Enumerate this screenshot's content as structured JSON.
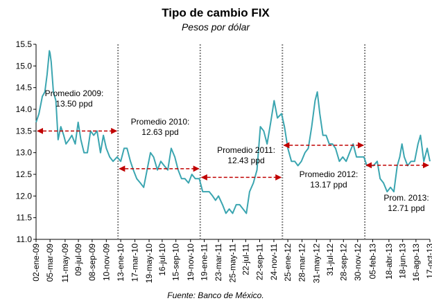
{
  "chart_data": {
    "type": "line",
    "title": "Tipo de cambio FIX",
    "subtitle": "Pesos por dólar",
    "source": "Fuente: Banco de México.",
    "ylim": [
      11.0,
      15.5
    ],
    "yticks": [
      {
        "value": 11.0,
        "label": "11.0"
      },
      11.5,
      {
        "value": 12.0,
        "label": "12.0"
      },
      12.5,
      {
        "value": 13.0,
        "label": "13.0"
      },
      13.5,
      {
        "value": 14.0,
        "label": "14.0"
      },
      14.5,
      {
        "value": 15.0,
        "label": "15.0"
      },
      15.5
    ],
    "xlim": [
      "2009-01-02",
      "2013-10-17"
    ],
    "xticks": [
      {
        "value": "2009-01-02",
        "label": "02-ene-09"
      },
      {
        "value": "2009-03-05",
        "label": "05-mar-09"
      },
      {
        "value": "2009-05-11",
        "label": "11-may-09"
      },
      {
        "value": "2009-07-09",
        "label": "09-jul-09"
      },
      {
        "value": "2009-09-08",
        "label": "08-sep-09"
      },
      {
        "value": "2009-11-10",
        "label": "10-nov-09"
      },
      {
        "value": "2010-01-13",
        "label": "13-ene-10"
      },
      {
        "value": "2010-03-17",
        "label": "17-mar-10"
      },
      {
        "value": "2010-05-19",
        "label": "19-may-10"
      },
      {
        "value": "2010-07-16",
        "label": "16-jul-10"
      },
      {
        "value": "2010-09-15",
        "label": "15-sep-10"
      },
      {
        "value": "2010-11-19",
        "label": "19-nov-10"
      },
      {
        "value": "2011-01-19",
        "label": "19-ene-11"
      },
      {
        "value": "2011-03-23",
        "label": "23-mar-11"
      },
      {
        "value": "2011-05-25",
        "label": "25-may-11"
      },
      {
        "value": "2011-07-22",
        "label": "22-jul-11"
      },
      {
        "value": "2011-09-22",
        "label": "22-sep-11"
      },
      {
        "value": "2011-11-24",
        "label": "24-nov-11"
      },
      {
        "value": "2012-01-25",
        "label": "25-ene-12"
      },
      {
        "value": "2012-03-28",
        "label": "28-mar-12"
      },
      {
        "value": "2012-05-31",
        "label": "31-may-12"
      },
      {
        "value": "2012-07-31",
        "label": "31-jul-12"
      },
      {
        "value": "2012-09-28",
        "label": "28-sep-12"
      },
      {
        "value": "2012-11-30",
        "label": "30-nov-12"
      },
      {
        "value": "2013-02-05",
        "label": "05-feb-13"
      },
      {
        "value": "2013-04-18",
        "label": "18-abr-13"
      },
      {
        "value": "2013-06-18",
        "label": "18-jun-13"
      },
      {
        "value": "2013-08-16",
        "label": "16-ago-13"
      },
      {
        "value": "2013-10-17",
        "label": "17-oct-13"
      }
    ],
    "dividers": [
      "2010-01-01",
      "2011-01-01",
      "2012-01-01",
      "2013-01-01"
    ],
    "x": [
      "2009-01-02",
      "2009-01-15",
      "2009-01-30",
      "2009-02-10",
      "2009-02-20",
      "2009-03-02",
      "2009-03-05",
      "2009-03-10",
      "2009-03-20",
      "2009-03-31",
      "2009-04-10",
      "2009-04-22",
      "2009-05-05",
      "2009-05-15",
      "2009-05-29",
      "2009-06-10",
      "2009-06-25",
      "2009-07-08",
      "2009-07-20",
      "2009-08-03",
      "2009-08-18",
      "2009-09-01",
      "2009-09-15",
      "2009-09-30",
      "2009-10-15",
      "2009-10-28",
      "2009-11-10",
      "2009-11-25",
      "2009-12-10",
      "2009-12-28",
      "2010-01-13",
      "2010-01-28",
      "2010-02-10",
      "2010-02-25",
      "2010-03-10",
      "2010-03-25",
      "2010-04-10",
      "2010-04-25",
      "2010-05-10",
      "2010-05-25",
      "2010-06-08",
      "2010-06-25",
      "2010-07-10",
      "2010-07-25",
      "2010-08-10",
      "2010-08-25",
      "2010-09-10",
      "2010-09-25",
      "2010-10-10",
      "2010-10-25",
      "2010-11-10",
      "2010-11-25",
      "2010-12-10",
      "2010-12-28",
      "2011-01-12",
      "2011-01-28",
      "2011-02-10",
      "2011-02-25",
      "2011-03-10",
      "2011-03-23",
      "2011-04-10",
      "2011-04-25",
      "2011-05-10",
      "2011-05-25",
      "2011-06-10",
      "2011-06-25",
      "2011-07-10",
      "2011-07-25",
      "2011-08-08",
      "2011-08-25",
      "2011-09-10",
      "2011-09-25",
      "2011-10-10",
      "2011-10-25",
      "2011-11-10",
      "2011-11-25",
      "2011-12-10",
      "2011-12-28",
      "2012-01-10",
      "2012-01-25",
      "2012-02-10",
      "2012-02-25",
      "2012-03-10",
      "2012-03-25",
      "2012-04-10",
      "2012-04-25",
      "2012-05-10",
      "2012-05-25",
      "2012-06-04",
      "2012-06-15",
      "2012-06-29",
      "2012-07-13",
      "2012-07-27",
      "2012-08-10",
      "2012-08-24",
      "2012-09-10",
      "2012-09-25",
      "2012-10-10",
      "2012-10-25",
      "2012-11-10",
      "2012-11-25",
      "2012-12-10",
      "2012-12-28",
      "2013-01-10",
      "2013-01-25",
      "2013-02-08",
      "2013-02-25",
      "2013-03-10",
      "2013-03-25",
      "2013-04-10",
      "2013-04-25",
      "2013-05-10",
      "2013-05-25",
      "2013-06-05",
      "2013-06-15",
      "2013-06-25",
      "2013-07-10",
      "2013-07-25",
      "2013-08-10",
      "2013-08-25",
      "2013-09-05",
      "2013-09-20",
      "2013-10-05",
      "2013-10-17"
    ],
    "series": [
      {
        "name": "FIX",
        "color": "#3aa5b0",
        "values": [
          13.7,
          13.9,
          14.3,
          14.4,
          14.8,
          15.35,
          15.3,
          15.1,
          14.4,
          14.2,
          13.3,
          13.6,
          13.4,
          13.2,
          13.3,
          13.4,
          13.2,
          13.7,
          13.3,
          13.0,
          13.0,
          13.5,
          13.4,
          13.5,
          13.0,
          13.4,
          13.1,
          12.9,
          12.8,
          12.9,
          12.8,
          13.1,
          13.1,
          12.8,
          12.6,
          12.4,
          12.3,
          12.2,
          12.6,
          13.0,
          12.9,
          12.6,
          12.8,
          12.7,
          12.6,
          13.1,
          12.9,
          12.6,
          12.4,
          12.4,
          12.3,
          12.5,
          12.4,
          12.4,
          12.1,
          12.1,
          12.1,
          12.0,
          11.9,
          12.0,
          11.8,
          11.6,
          11.7,
          11.6,
          11.8,
          11.8,
          11.7,
          11.6,
          12.1,
          12.3,
          12.6,
          13.6,
          13.5,
          13.2,
          13.7,
          14.2,
          13.8,
          13.9,
          13.6,
          13.1,
          12.8,
          12.8,
          12.7,
          12.8,
          13.0,
          13.1,
          13.6,
          14.2,
          14.4,
          13.9,
          13.4,
          13.4,
          13.2,
          13.2,
          13.1,
          12.8,
          12.9,
          12.8,
          13.0,
          13.2,
          12.9,
          12.9,
          12.9,
          12.7,
          12.7,
          12.7,
          12.8,
          12.4,
          12.3,
          12.1,
          12.2,
          12.1,
          12.7,
          12.9,
          13.2,
          12.9,
          12.7,
          12.8,
          12.8,
          13.2,
          13.4,
          12.8,
          13.1,
          12.8
        ]
      }
    ],
    "annotations": [
      {
        "lines": [
          "Promedio 2009:",
          "13.50 ppd"
        ],
        "value": 13.5,
        "start": "2009-01-02",
        "end": "2010-01-01"
      },
      {
        "lines": [
          "Promedio 2010:",
          "12.63 ppd"
        ],
        "value": 12.63,
        "start": "2010-01-01",
        "end": "2011-01-01"
      },
      {
        "lines": [
          "Promedio 2011:",
          "12.43 ppd"
        ],
        "value": 12.43,
        "start": "2011-01-01",
        "end": "2012-01-01"
      },
      {
        "lines": [
          "Promedio 2012:",
          "13.17 ppd"
        ],
        "value": 13.17,
        "start": "2012-01-01",
        "end": "2013-01-01"
      },
      {
        "lines": [
          "Prom. 2013:",
          "12.71 ppd"
        ],
        "value": 12.71,
        "start": "2013-01-01",
        "end": "2013-10-17"
      }
    ]
  }
}
